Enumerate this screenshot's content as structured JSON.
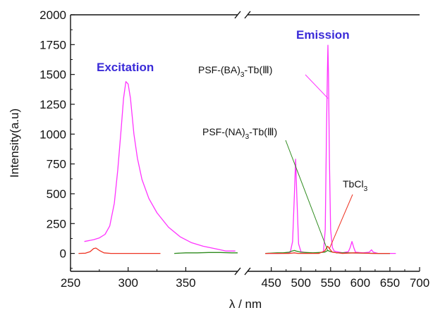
{
  "chart_data": {
    "type": "line",
    "xlabel": "λ / nm",
    "ylabel": "Intensity(a.u)",
    "ylim": [
      -150,
      2000
    ],
    "y_ticks": [
      0,
      250,
      500,
      750,
      1000,
      1250,
      1500,
      1750,
      2000
    ],
    "x_axis_break": true,
    "x_segments": [
      {
        "range": [
          250,
          395
        ],
        "ticks": [
          250,
          300,
          350
        ]
      },
      {
        "range": [
          410,
          700
        ],
        "ticks": [
          450,
          500,
          550,
          600,
          650,
          700
        ]
      }
    ],
    "labels": {
      "excitation": "Excitation",
      "emission": "Emission",
      "ba_complex": "PSF-(BA)",
      "na_complex": "PSF-(NA)",
      "tb_suffix": "-Tb(Ⅲ)",
      "subscript_3": "3",
      "tbcl": "TbCl"
    },
    "colors": {
      "ba_complex": "#ff33ff",
      "na_complex": "#2e8b1e",
      "tbcl3": "#ee3322",
      "excitation_label": "#3a2bd8",
      "emission_label": "#3a2bd8"
    },
    "series": [
      {
        "key": "ba_excitation",
        "color": "#ff33ff",
        "points": [
          [
            262,
            100
          ],
          [
            270,
            115
          ],
          [
            275,
            130
          ],
          [
            280,
            160
          ],
          [
            284,
            230
          ],
          [
            288,
            420
          ],
          [
            291,
            700
          ],
          [
            294,
            1050
          ],
          [
            296,
            1300
          ],
          [
            298,
            1440
          ],
          [
            300,
            1420
          ],
          [
            302,
            1300
          ],
          [
            305,
            1000
          ],
          [
            308,
            800
          ],
          [
            312,
            620
          ],
          [
            318,
            460
          ],
          [
            325,
            340
          ],
          [
            335,
            220
          ],
          [
            345,
            140
          ],
          [
            355,
            90
          ],
          [
            365,
            60
          ],
          [
            375,
            40
          ],
          [
            385,
            20
          ],
          [
            393,
            20
          ]
        ]
      },
      {
        "key": "tbcl3_excitation",
        "color": "#ee3322",
        "points": [
          [
            257,
            0
          ],
          [
            263,
            2
          ],
          [
            267,
            15
          ],
          [
            270,
            40
          ],
          [
            272,
            45
          ],
          [
            275,
            25
          ],
          [
            279,
            5
          ],
          [
            285,
            0
          ],
          [
            300,
            0
          ],
          [
            315,
            0
          ],
          [
            328,
            0
          ]
        ]
      },
      {
        "key": "na_excitation",
        "color": "#2e8b1e",
        "points": [
          [
            340,
            0
          ],
          [
            350,
            5
          ],
          [
            360,
            5
          ],
          [
            370,
            8
          ],
          [
            380,
            8
          ],
          [
            390,
            5
          ],
          [
            395,
            5
          ]
        ]
      },
      {
        "key": "ba_emission",
        "color": "#ff33ff",
        "points": [
          [
            440,
            0
          ],
          [
            460,
            0
          ],
          [
            475,
            2
          ],
          [
            482,
            10
          ],
          [
            486,
            100
          ],
          [
            489,
            500
          ],
          [
            491,
            790
          ],
          [
            493,
            500
          ],
          [
            496,
            80
          ],
          [
            500,
            15
          ],
          [
            510,
            5
          ],
          [
            530,
            3
          ],
          [
            538,
            15
          ],
          [
            541,
            200
          ],
          [
            543,
            1000
          ],
          [
            544.5,
            1500
          ],
          [
            545.5,
            1745
          ],
          [
            546.5,
            1500
          ],
          [
            548,
            800
          ],
          [
            550,
            200
          ],
          [
            553,
            50
          ],
          [
            556,
            20
          ],
          [
            570,
            5
          ],
          [
            580,
            15
          ],
          [
            583,
            50
          ],
          [
            586,
            100
          ],
          [
            589,
            50
          ],
          [
            592,
            10
          ],
          [
            605,
            5
          ],
          [
            615,
            10
          ],
          [
            619,
            30
          ],
          [
            622,
            10
          ],
          [
            630,
            0
          ],
          [
            650,
            0
          ],
          [
            660,
            0
          ]
        ]
      },
      {
        "key": "na_emission",
        "color": "#2e8b1e",
        "points": [
          [
            440,
            0
          ],
          [
            460,
            5
          ],
          [
            470,
            5
          ],
          [
            480,
            10
          ],
          [
            485,
            20
          ],
          [
            489,
            25
          ],
          [
            492,
            20
          ],
          [
            500,
            10
          ],
          [
            520,
            5
          ],
          [
            540,
            10
          ],
          [
            545,
            25
          ],
          [
            550,
            15
          ],
          [
            560,
            5
          ],
          [
            580,
            5
          ],
          [
            600,
            3
          ],
          [
            630,
            0
          ],
          [
            650,
            0
          ]
        ]
      },
      {
        "key": "tbcl3_emission",
        "color": "#ee3322",
        "points": [
          [
            440,
            0
          ],
          [
            480,
            0
          ],
          [
            489,
            5
          ],
          [
            495,
            0
          ],
          [
            530,
            0
          ],
          [
            540,
            20
          ],
          [
            545,
            60
          ],
          [
            548,
            40
          ],
          [
            553,
            10
          ],
          [
            570,
            0
          ],
          [
            590,
            5
          ],
          [
            620,
            0
          ],
          [
            650,
            0
          ]
        ]
      }
    ]
  }
}
